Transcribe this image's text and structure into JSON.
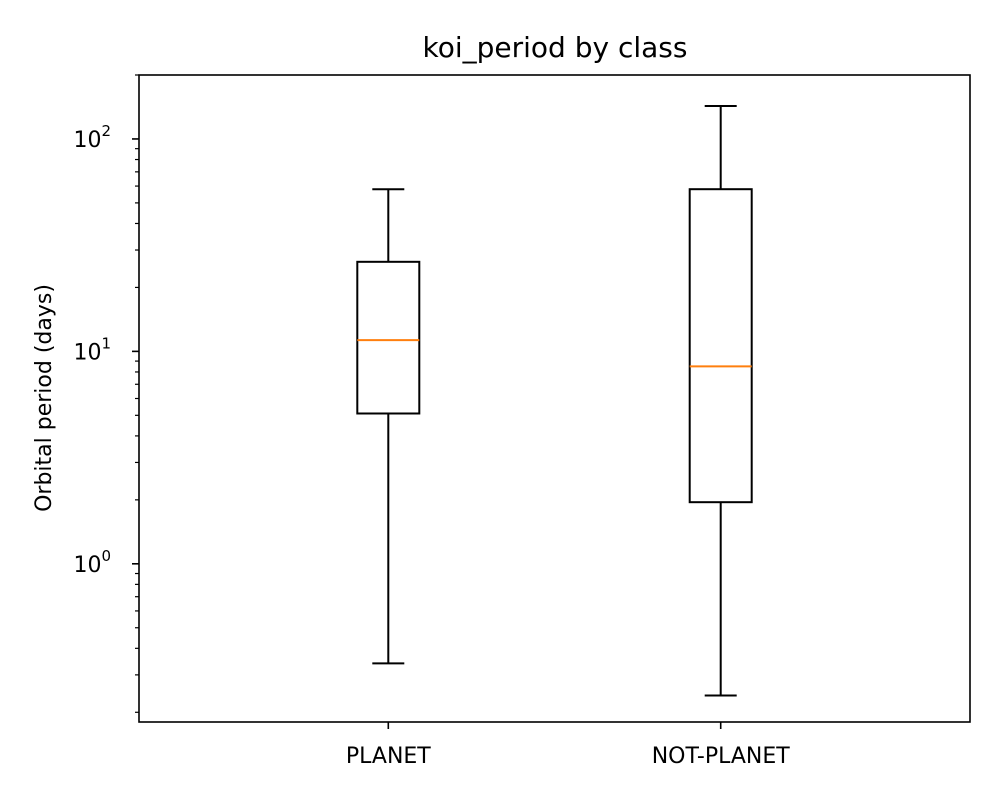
{
  "chart_data": {
    "type": "box",
    "title": "koi_period by class",
    "xlabel": "",
    "ylabel": "Orbital period (days)",
    "yscale": "log",
    "ylim": [
      0.18,
      200
    ],
    "yticks": [
      {
        "value": 1,
        "base": "10",
        "exp": "0"
      },
      {
        "value": 10,
        "base": "10",
        "exp": "1"
      },
      {
        "value": 100,
        "base": "10",
        "exp": "2"
      }
    ],
    "categories": [
      "PLANET",
      "NOT-PLANET"
    ],
    "boxes": [
      {
        "category": "PLANET",
        "whisker_low": 0.34,
        "q1": 5.1,
        "median": 11.3,
        "q3": 26.4,
        "whisker_high": 58
      },
      {
        "category": "NOT-PLANET",
        "whisker_low": 0.24,
        "q1": 1.95,
        "median": 8.5,
        "q3": 58,
        "whisker_high": 143
      }
    ],
    "grid": false,
    "legend": "none",
    "colors": {
      "box": "#000000",
      "median": "#ff7f0e"
    }
  }
}
